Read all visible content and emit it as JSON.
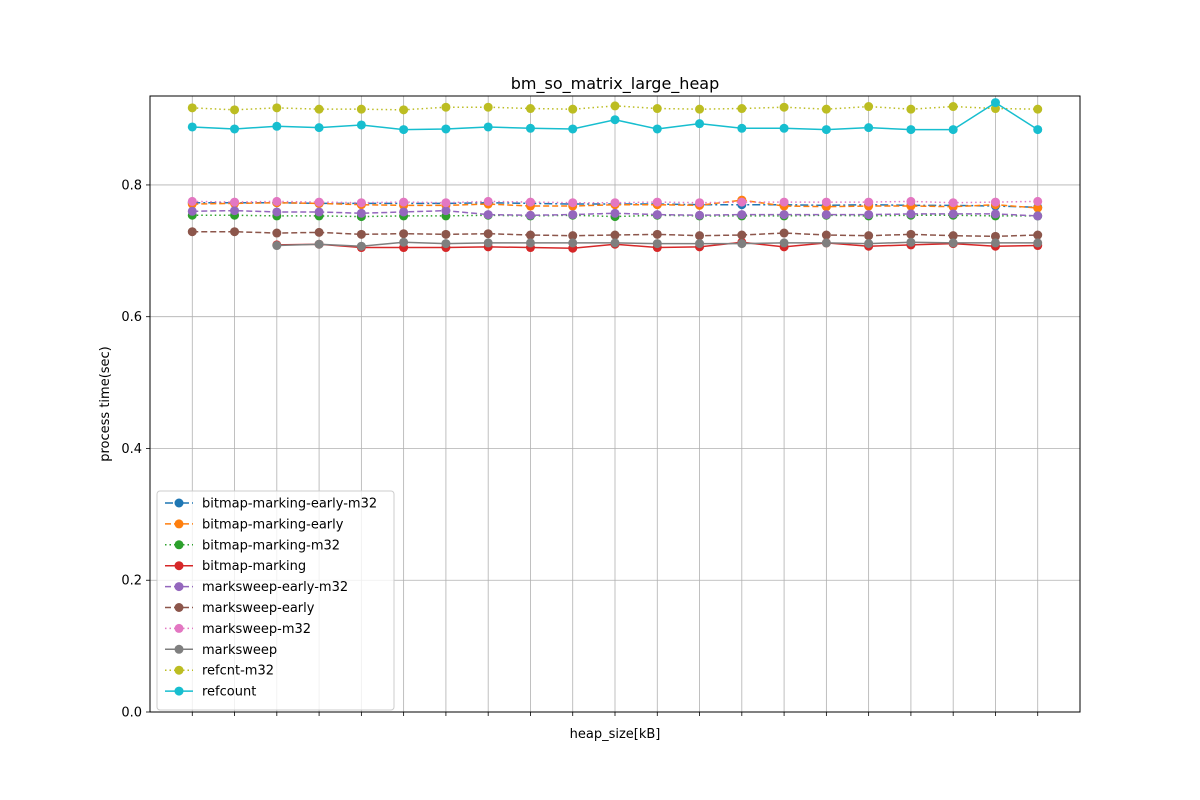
{
  "chart_data": {
    "type": "line",
    "title": "bm_so_matrix_large_heap",
    "xlabel": "heap_size[kB]",
    "ylabel": "process time(sec)",
    "ylim": [
      0.0,
      0.935
    ],
    "yticks": [
      {
        "value": 0.0,
        "label": "0.0"
      },
      {
        "value": 0.2,
        "label": "0.2"
      },
      {
        "value": 0.4,
        "label": "0.4"
      },
      {
        "value": 0.6,
        "label": "0.6"
      },
      {
        "value": 0.8,
        "label": "0.8"
      }
    ],
    "x": [
      1,
      2,
      3,
      4,
      5,
      6,
      7,
      8,
      9,
      10,
      11,
      12,
      13,
      14,
      15,
      16,
      17,
      18,
      19,
      20,
      21
    ],
    "grid": true,
    "legend_position": "lower-left",
    "series": [
      {
        "name": "bitmap-marking-early-m32",
        "color": "#1f77b4",
        "dash": "8,3,2,3",
        "values": [
          0.773,
          0.773,
          0.773,
          0.772,
          0.772,
          0.772,
          0.772,
          0.773,
          0.772,
          0.771,
          0.771,
          0.771,
          0.77,
          0.77,
          0.77,
          0.769,
          0.77,
          0.769,
          0.769,
          0.768,
          0.766
        ]
      },
      {
        "name": "bitmap-marking-early",
        "color": "#ff7f0e",
        "dash": "6,3",
        "values": [
          0.771,
          0.772,
          0.773,
          0.772,
          0.77,
          0.769,
          0.769,
          0.771,
          0.768,
          0.768,
          0.77,
          0.77,
          0.769,
          0.777,
          0.768,
          0.767,
          0.768,
          0.768,
          0.767,
          0.77,
          0.765
        ]
      },
      {
        "name": "bitmap-marking-m32",
        "color": "#2ca02c",
        "dash": "1.5,3",
        "values": [
          0.754,
          0.754,
          0.753,
          0.753,
          0.752,
          0.753,
          0.753,
          0.754,
          0.753,
          0.754,
          0.752,
          0.754,
          0.753,
          0.753,
          0.753,
          0.754,
          0.753,
          0.754,
          0.754,
          0.753,
          0.753
        ]
      },
      {
        "name": "bitmap-marking",
        "color": "#d62728",
        "dash": "",
        "values": [
          null,
          null,
          0.709,
          0.71,
          0.705,
          0.705,
          0.705,
          0.706,
          0.705,
          0.704,
          0.71,
          0.705,
          0.706,
          0.713,
          0.706,
          0.712,
          0.707,
          0.709,
          0.711,
          0.707,
          0.708
        ]
      },
      {
        "name": "marksweep-early-m32",
        "color": "#9467bd",
        "dash": "6,3",
        "values": [
          0.76,
          0.761,
          0.759,
          0.759,
          0.757,
          0.759,
          0.761,
          0.755,
          0.754,
          0.755,
          0.757,
          0.755,
          0.754,
          0.755,
          0.755,
          0.755,
          0.755,
          0.756,
          0.756,
          0.756,
          0.753
        ]
      },
      {
        "name": "marksweep-early",
        "color": "#8c564b",
        "dash": "6,3",
        "values": [
          0.729,
          0.729,
          0.727,
          0.728,
          0.725,
          0.726,
          0.725,
          0.726,
          0.724,
          0.723,
          0.724,
          0.725,
          0.723,
          0.724,
          0.727,
          0.724,
          0.723,
          0.725,
          0.723,
          0.722,
          0.724
        ]
      },
      {
        "name": "marksweep-m32",
        "color": "#e377c2",
        "dash": "1.5,3",
        "values": [
          0.775,
          0.774,
          0.775,
          0.774,
          0.773,
          0.774,
          0.773,
          0.775,
          0.774,
          0.773,
          0.773,
          0.774,
          0.773,
          0.774,
          0.774,
          0.774,
          0.774,
          0.775,
          0.773,
          0.774,
          0.775
        ]
      },
      {
        "name": "marksweep",
        "color": "#7f7f7f",
        "dash": "",
        "values": [
          null,
          null,
          0.708,
          0.71,
          0.707,
          0.713,
          0.711,
          0.712,
          0.712,
          0.712,
          0.712,
          0.711,
          0.711,
          0.711,
          0.712,
          0.712,
          0.711,
          0.713,
          0.712,
          0.712,
          0.712
        ]
      },
      {
        "name": "refcnt-m32",
        "color": "#bcbd22",
        "dash": "1.5,3",
        "values": [
          0.917,
          0.914,
          0.917,
          0.915,
          0.915,
          0.914,
          0.918,
          0.918,
          0.916,
          0.915,
          0.92,
          0.916,
          0.915,
          0.916,
          0.918,
          0.915,
          0.919,
          0.915,
          0.919,
          0.916,
          0.915
        ]
      },
      {
        "name": "refcount",
        "color": "#17becf",
        "dash": "",
        "values": [
          0.888,
          0.885,
          0.889,
          0.887,
          0.891,
          0.884,
          0.885,
          0.888,
          0.886,
          0.885,
          0.899,
          0.885,
          0.893,
          0.886,
          0.886,
          0.884,
          0.887,
          0.884,
          0.884,
          0.925,
          0.884
        ]
      }
    ]
  }
}
